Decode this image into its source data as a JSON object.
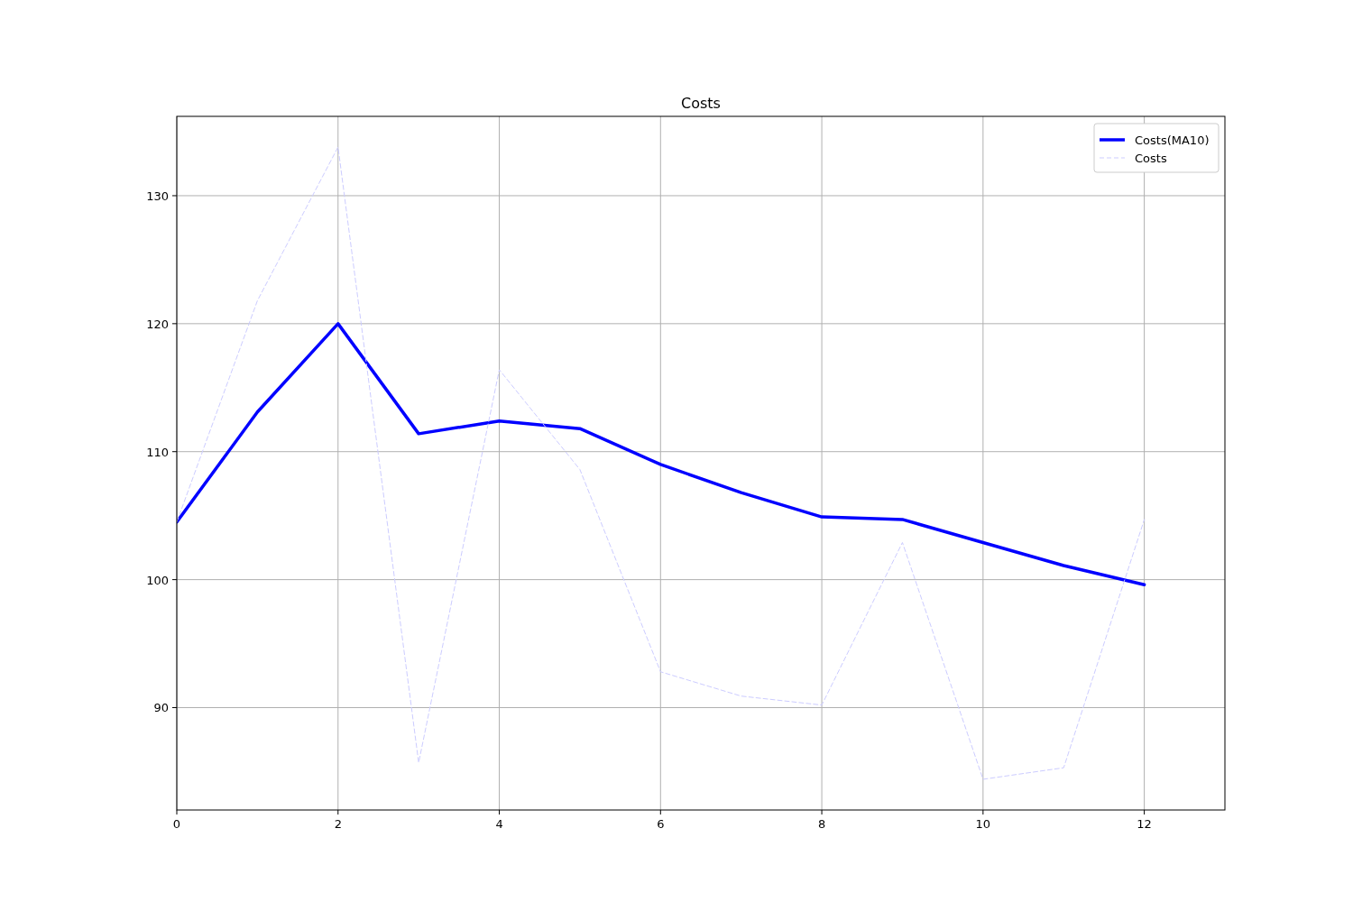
{
  "chart_data": {
    "type": "line",
    "title": "Costs",
    "x": [
      0,
      1,
      2,
      3,
      4,
      5,
      6,
      7,
      8,
      9,
      10,
      11,
      12
    ],
    "series": [
      {
        "name": "Costs(MA10)",
        "color": "#0000ff",
        "line_style": "solid",
        "values": [
          104.5,
          113.1,
          120.0,
          111.4,
          112.4,
          111.8,
          109.0,
          106.8,
          104.9,
          104.7,
          102.9,
          101.1,
          99.6
        ]
      },
      {
        "name": "Costs",
        "color": "#ccccff",
        "line_style": "dashed",
        "values": [
          104.5,
          121.8,
          133.8,
          85.7,
          116.4,
          108.6,
          92.8,
          90.9,
          90.2,
          102.9,
          84.4,
          85.3,
          104.7
        ]
      }
    ],
    "xlim": [
      0,
      13
    ],
    "xticks": [
      0,
      2,
      4,
      6,
      8,
      10,
      12
    ],
    "ylim": [
      82,
      136.2
    ],
    "yticks": [
      90,
      100,
      110,
      120,
      130
    ],
    "grid": true,
    "legend": "top right"
  }
}
